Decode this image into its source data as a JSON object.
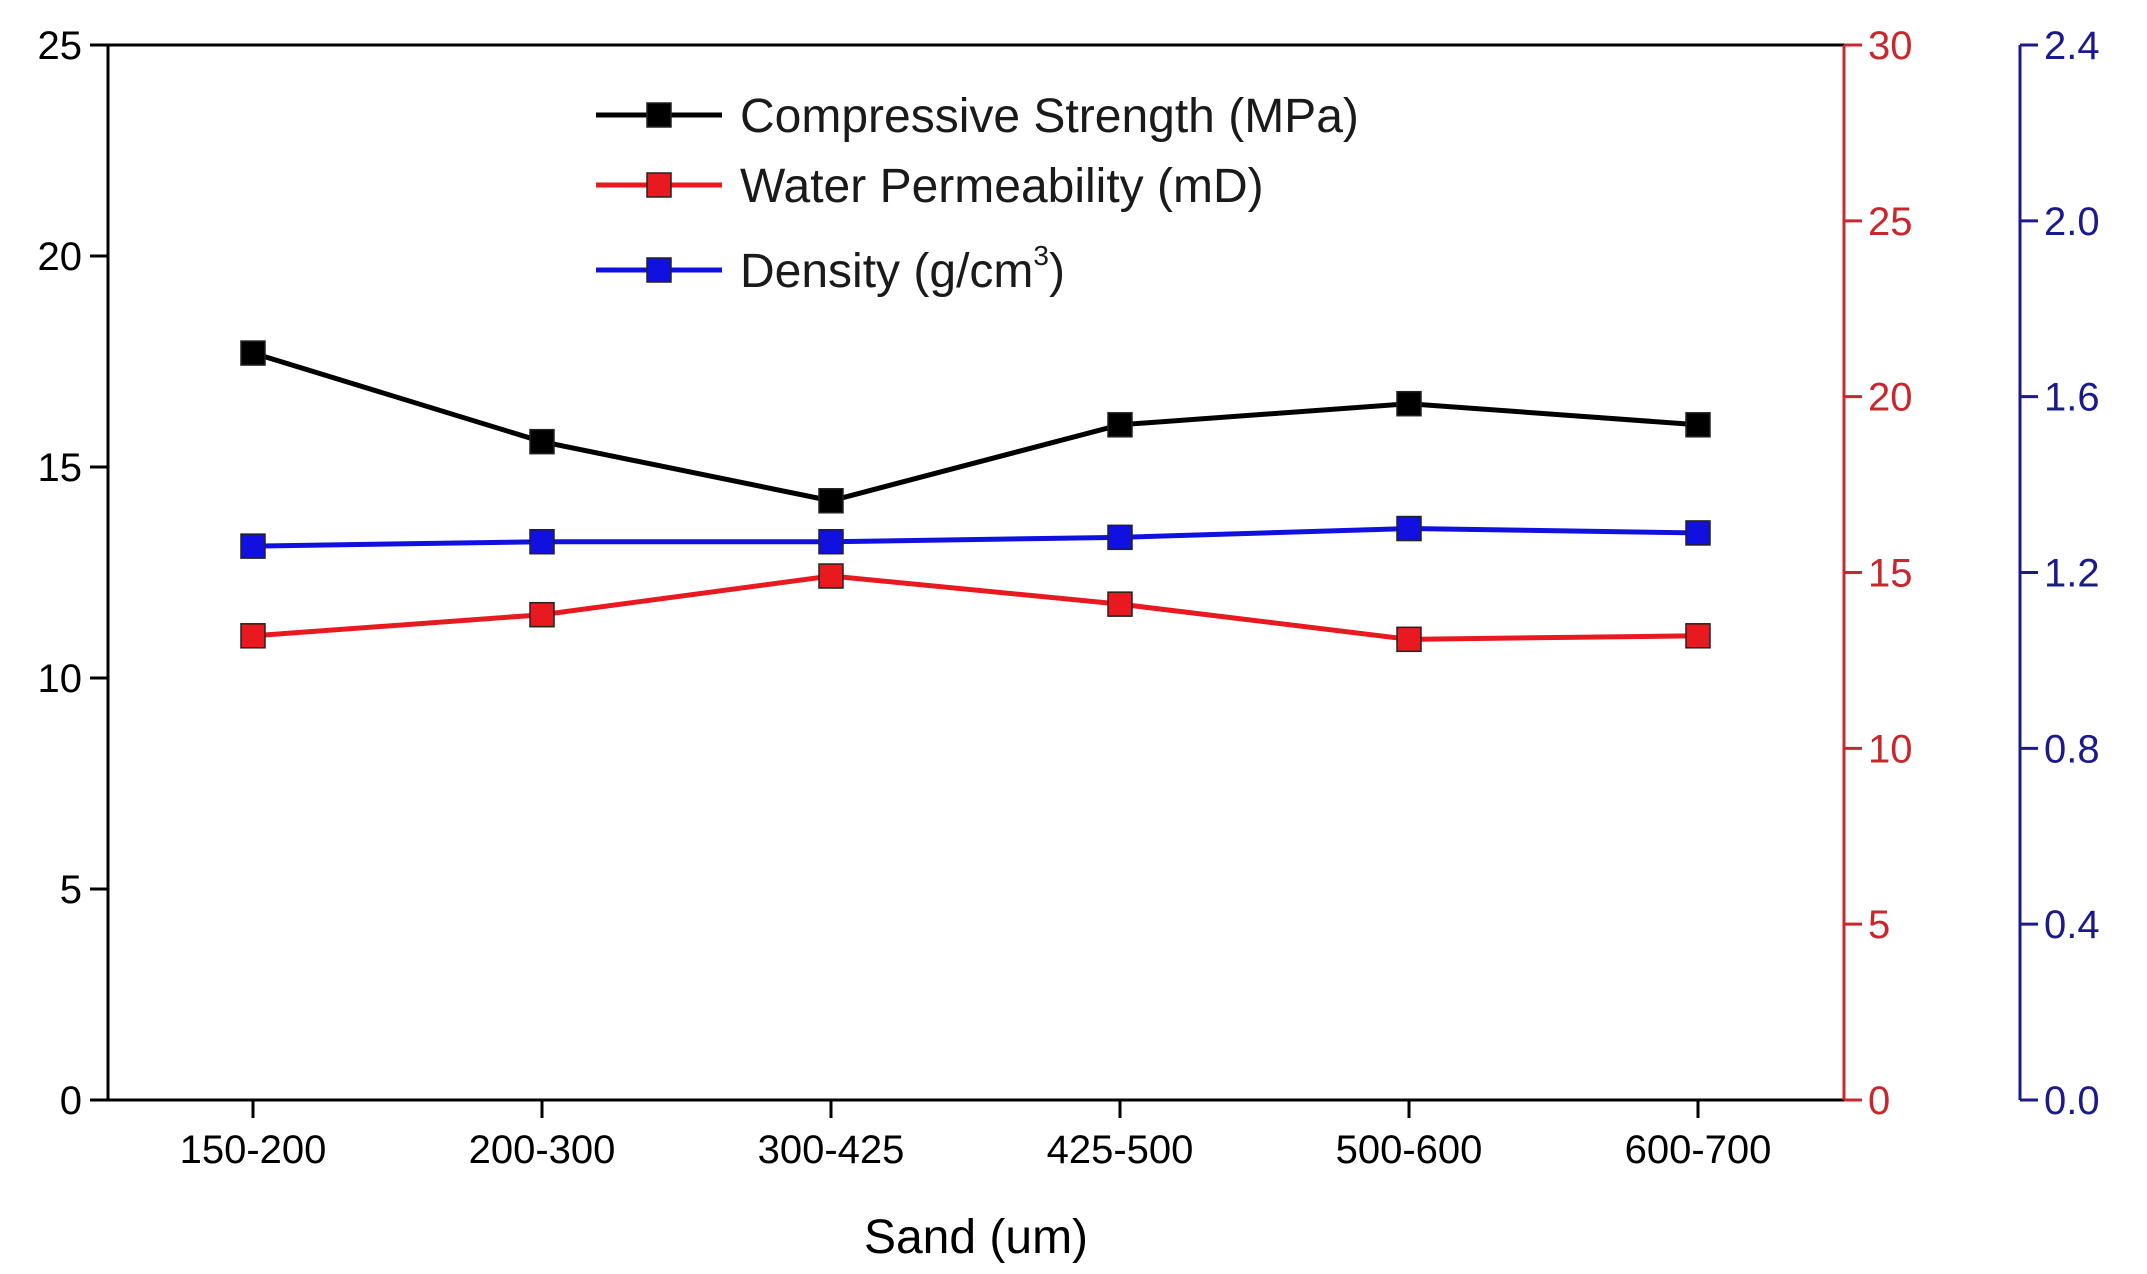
{
  "chart_data": {
    "type": "line",
    "title": "",
    "xlabel": "Sand (um)",
    "categories": [
      "150-200",
      "200-300",
      "300-425",
      "425-500",
      "500-600",
      "600-700"
    ],
    "series": [
      {
        "name": "Compressive Strength (MPa)",
        "color": "#000000",
        "marker": "square",
        "axis": "y1",
        "values": [
          17.7,
          15.6,
          14.2,
          16.0,
          16.5,
          16.0
        ]
      },
      {
        "name": "Water Permeability (mD)",
        "color": "#e8191f",
        "marker": "square",
        "axis": "y2",
        "values": [
          13.2,
          13.8,
          14.9,
          14.1,
          13.1,
          13.2
        ]
      },
      {
        "name": "Density (g/cm3)",
        "legend_main": "Density (g/cm",
        "legend_sup": "3",
        "legend_tail": ")",
        "color": "#1010e0",
        "marker": "square",
        "axis": "y3",
        "values": [
          1.26,
          1.27,
          1.27,
          1.28,
          1.3,
          1.29
        ]
      }
    ],
    "axes": {
      "y1": {
        "label": "",
        "min": 0,
        "max": 25,
        "ticks": [
          0,
          5,
          10,
          15,
          20,
          25
        ],
        "tick_labels": [
          "0",
          "5",
          "10",
          "15",
          "20",
          "25"
        ],
        "color": "#000000"
      },
      "y2": {
        "label": "",
        "min": 0,
        "max": 30,
        "ticks": [
          0,
          5,
          10,
          15,
          20,
          25,
          30
        ],
        "tick_labels": [
          "0",
          "5",
          "10",
          "15",
          "20",
          "25",
          "30"
        ],
        "color": "#c8282d"
      },
      "y3": {
        "label": "",
        "min": 0,
        "max": 2.4,
        "ticks": [
          0,
          0.4,
          0.8,
          1.2,
          1.6,
          2.0,
          2.4
        ],
        "tick_labels": [
          "0.0",
          "0.4",
          "0.8",
          "1.2",
          "1.6",
          "2.0",
          "2.4"
        ],
        "color": "#1a1a8c"
      }
    },
    "grid": false,
    "legend_position": "top-center"
  }
}
